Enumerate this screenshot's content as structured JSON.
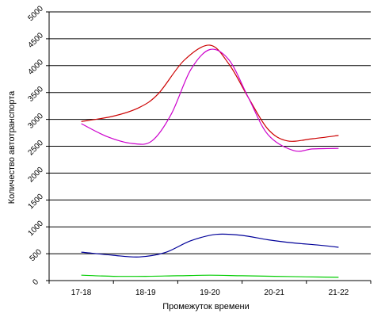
{
  "chart_data": {
    "type": "line",
    "xlabel": "Промежуток времени",
    "ylabel": "Количество автотранспорта",
    "categories": [
      "17-18",
      "18-19",
      "19-20",
      "20-21",
      "21-22"
    ],
    "ylim": [
      0,
      5000
    ],
    "yticks": [
      "0",
      "500",
      "1000",
      "1500",
      "2000",
      "2500",
      "3000",
      "3500",
      "4000",
      "4500",
      "5000"
    ],
    "grid": true,
    "legend": "none",
    "series": [
      {
        "color": "#cc0000",
        "x": [
          0,
          0.5,
          0.9,
          1.2,
          1.6,
          2.0,
          2.3,
          2.6,
          2.9,
          3.2,
          3.6,
          4.0
        ],
        "values": [
          2960,
          3060,
          3220,
          3480,
          4100,
          4380,
          4020,
          3400,
          2820,
          2600,
          2640,
          2700
        ]
      },
      {
        "color": "#cc00cc",
        "x": [
          0,
          0.4,
          0.8,
          1.1,
          1.4,
          1.7,
          2.0,
          2.3,
          2.6,
          2.9,
          3.3,
          3.6,
          4.0
        ],
        "values": [
          2920,
          2680,
          2550,
          2600,
          3100,
          3920,
          4300,
          4100,
          3400,
          2720,
          2420,
          2450,
          2460
        ]
      },
      {
        "color": "#000099",
        "x": [
          0,
          0.5,
          0.9,
          1.3,
          1.7,
          2.1,
          2.5,
          2.9,
          3.3,
          3.7,
          4.0
        ],
        "values": [
          530,
          470,
          440,
          520,
          740,
          860,
          840,
          760,
          700,
          660,
          620
        ]
      },
      {
        "color": "#00cc00",
        "x": [
          0,
          0.5,
          1.0,
          1.5,
          2.0,
          2.5,
          3.0,
          3.5,
          4.0
        ],
        "values": [
          100,
          80,
          80,
          90,
          100,
          90,
          80,
          70,
          60
        ]
      }
    ]
  }
}
